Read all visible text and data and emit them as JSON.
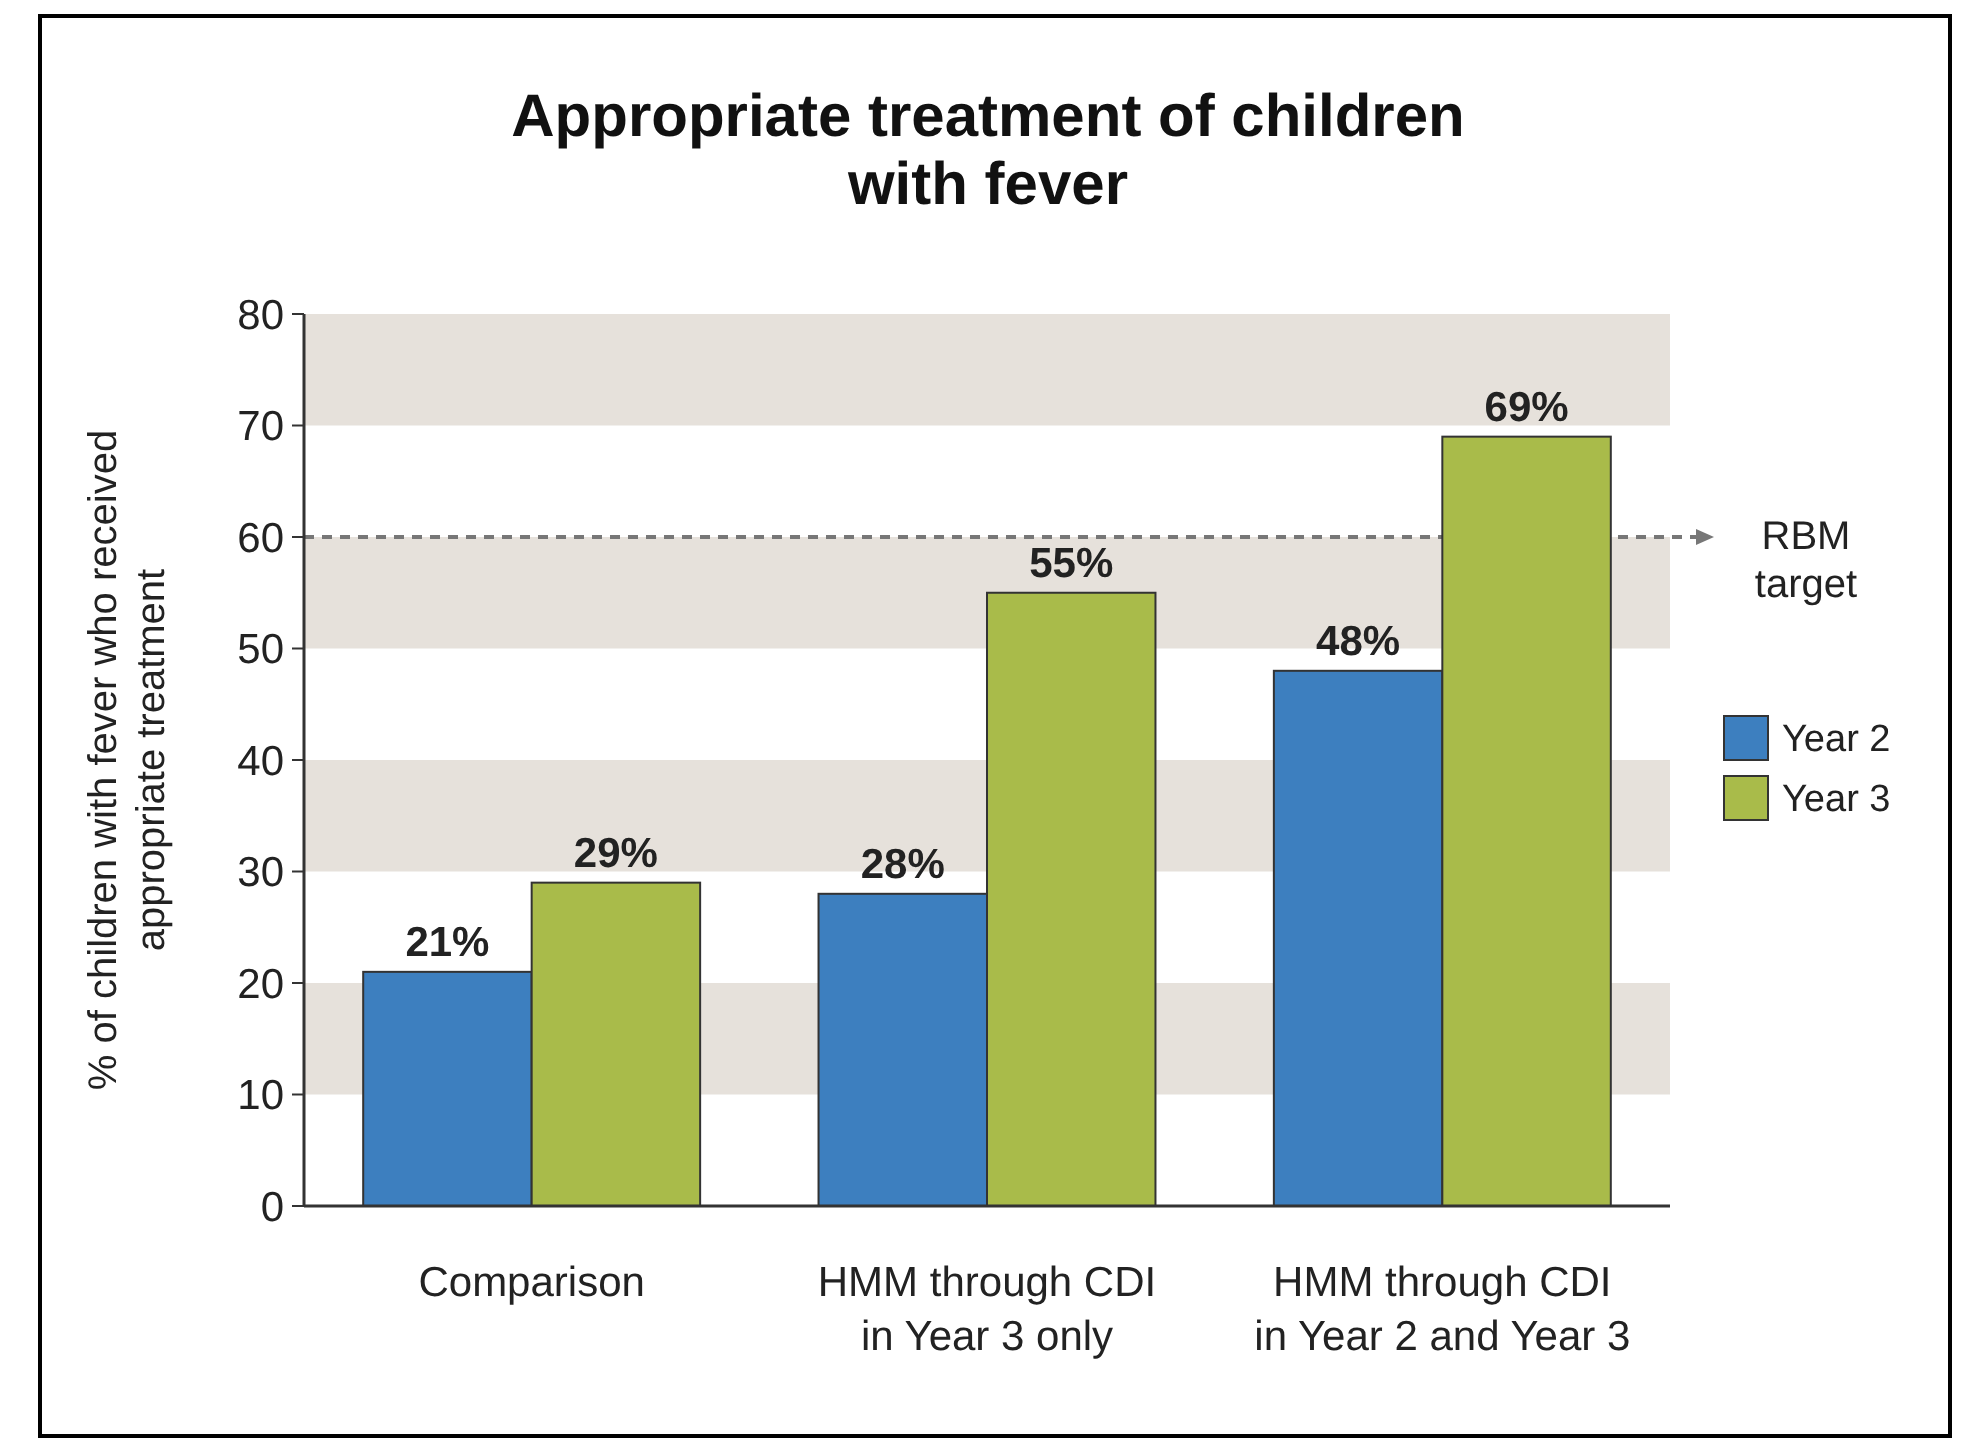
{
  "chart_data": {
    "type": "bar",
    "title": "Appropriate treatment of children\nwith fever",
    "ylabel": "% of children with fever who received\nappropriate treatment",
    "categories": [
      "Comparison",
      "HMM through CDI\nin Year 3 only",
      "HMM through CDI\nin Year 2 and Year 3"
    ],
    "series": [
      {
        "name": "Year 2",
        "color": "#3d7fbf",
        "values": [
          21,
          28,
          48
        ],
        "value_labels": [
          "21%",
          "28%",
          "48%"
        ]
      },
      {
        "name": "Year 3",
        "color": "#a9bb4a",
        "values": [
          29,
          55,
          69
        ],
        "value_labels": [
          "29%",
          "55%",
          "69%"
        ]
      }
    ],
    "ylim": [
      0,
      80
    ],
    "yticks": [
      0,
      10,
      20,
      30,
      40,
      50,
      60,
      70,
      80
    ],
    "legend": "right",
    "ref_lines": [
      {
        "axis": "y",
        "value": 60,
        "label": "RBM target",
        "line_style": "dashed",
        "color": "#777777"
      }
    ]
  }
}
